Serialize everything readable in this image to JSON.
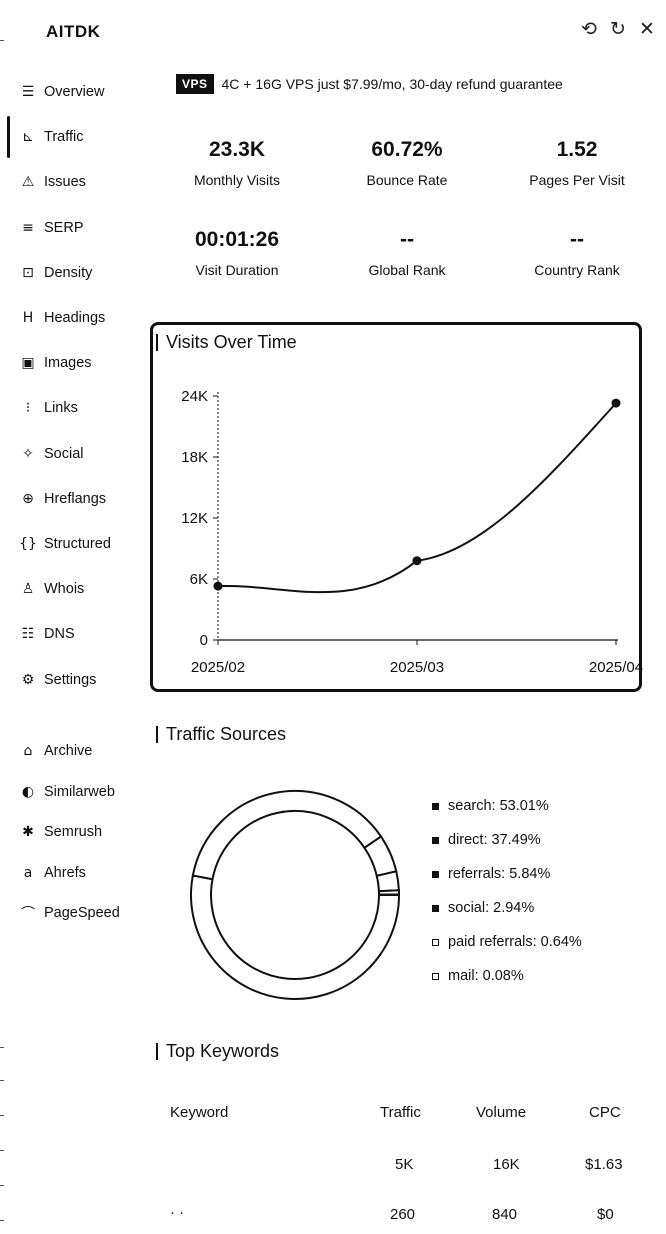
{
  "app": {
    "title": "AITDK"
  },
  "window_controls": [
    {
      "name": "pin-icon",
      "glyph": "⟲"
    },
    {
      "name": "refresh-icon",
      "glyph": "↻"
    },
    {
      "name": "close-icon",
      "glyph": "✕"
    }
  ],
  "sidebar": {
    "active": "Traffic",
    "items": [
      {
        "label": "Overview",
        "icon": "overview-icon",
        "glyph": "☰"
      },
      {
        "label": "Traffic",
        "icon": "traffic-chart-icon",
        "glyph": "⊾"
      },
      {
        "label": "Issues",
        "icon": "warning-icon",
        "glyph": "⚠"
      },
      {
        "label": "SERP",
        "icon": "serp-icon",
        "glyph": "≡"
      },
      {
        "label": "Density",
        "icon": "density-icon",
        "glyph": "⊡"
      },
      {
        "label": "Headings",
        "icon": "heading-icon",
        "glyph": "H"
      },
      {
        "label": "Images",
        "icon": "image-icon",
        "glyph": "▣"
      },
      {
        "label": "Links",
        "icon": "links-icon",
        "glyph": "⁝"
      },
      {
        "label": "Social",
        "icon": "bird-icon",
        "glyph": "✧"
      },
      {
        "label": "Hreflangs",
        "icon": "globe-icon",
        "glyph": "⊕"
      },
      {
        "label": "Structured",
        "icon": "braces-icon",
        "glyph": "{}"
      },
      {
        "label": "Whois",
        "icon": "person-search-icon",
        "glyph": "♙"
      },
      {
        "label": "DNS",
        "icon": "server-icon",
        "glyph": "☷"
      },
      {
        "label": "Settings",
        "icon": "gear-icon",
        "glyph": "⚙"
      }
    ],
    "tools": [
      {
        "label": "Archive",
        "icon": "archive-icon",
        "glyph": "⌂"
      },
      {
        "label": "Similarweb",
        "icon": "similarweb-icon",
        "glyph": "◐"
      },
      {
        "label": "Semrush",
        "icon": "semrush-icon",
        "glyph": "✱"
      },
      {
        "label": "Ahrefs",
        "icon": "ahrefs-icon",
        "glyph": "a"
      },
      {
        "label": "PageSpeed",
        "icon": "speed-icon",
        "glyph": "⌒"
      }
    ]
  },
  "promo": {
    "badge": "VPS",
    "text": "4C + 16G VPS just $7.99/mo, 30-day refund guarantee"
  },
  "stats": [
    {
      "value": "23.3K",
      "label": "Monthly Visits"
    },
    {
      "value": "60.72%",
      "label": "Bounce Rate"
    },
    {
      "value": "1.52",
      "label": "Pages Per Visit"
    },
    {
      "value": "00:01:26",
      "label": "Visit Duration"
    },
    {
      "value": "--",
      "label": "Global Rank"
    },
    {
      "value": "--",
      "label": "Country Rank"
    }
  ],
  "visits_chart": {
    "title": "Visits Over Time",
    "chart_data": {
      "type": "line",
      "x": [
        "2025/02",
        "2025/03",
        "2025/04"
      ],
      "values": [
        5300,
        7800,
        23300
      ],
      "yticks": [
        "0",
        "6K",
        "12K",
        "18K",
        "24K"
      ],
      "ylim": [
        0,
        24000
      ],
      "grid": false
    }
  },
  "traffic_sources": {
    "title": "Traffic Sources",
    "chart_data": {
      "type": "pie",
      "categories": [
        "search",
        "direct",
        "referrals",
        "social",
        "paid referrals",
        "mail"
      ],
      "values": [
        53.01,
        37.49,
        5.84,
        2.94,
        0.64,
        0.08
      ],
      "legend_placement": "right"
    },
    "legend": [
      "search: 53.01%",
      "direct: 37.49%",
      "referrals: 5.84%",
      "social: 2.94%",
      "paid referrals: 0.64%",
      "mail: 0.08%"
    ]
  },
  "top_keywords": {
    "title": "Top Keywords",
    "headers": [
      "Keyword",
      "Traffic",
      "Volume",
      "CPC"
    ],
    "rows": [
      {
        "keyword": "",
        "traffic": "5K",
        "volume": "16K",
        "cpc": "$1.63"
      },
      {
        "keyword": "· ·",
        "traffic": "260",
        "volume": "840",
        "cpc": "$0"
      }
    ]
  }
}
